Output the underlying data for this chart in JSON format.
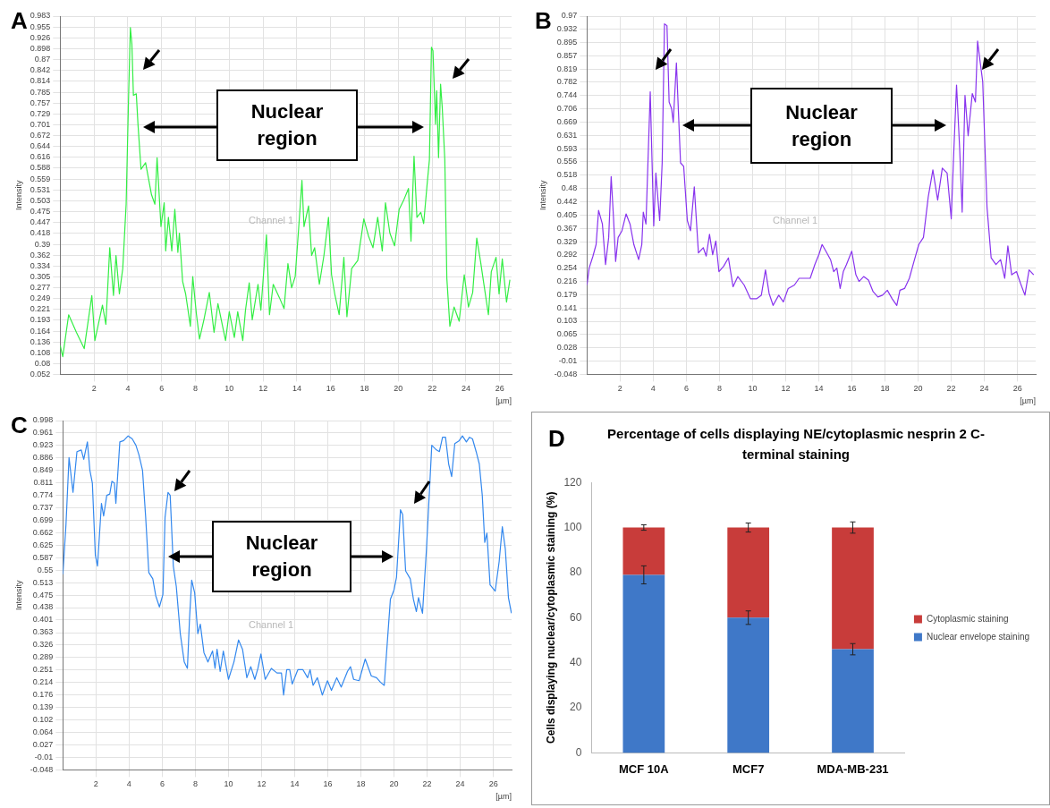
{
  "chart_data": [
    {
      "type": "line",
      "xlabel": "[µm]",
      "ylabel": "Intensity",
      "annotations": [
        "A",
        "Nuclear region",
        "Channel 1"
      ],
      "x": [
        0,
        0.15,
        0.5,
        0.96,
        1.42,
        1.87,
        2.05,
        2.5,
        2.7,
        2.93,
        3.15,
        3.3,
        3.5,
        3.7,
        3.9,
        4.05,
        4.15,
        4.24,
        4.33,
        4.5,
        4.6,
        4.78,
        5.05,
        5.4,
        5.6,
        5.73,
        5.96,
        6.15,
        6.24,
        6.4,
        6.6,
        6.78,
        6.96,
        7.05,
        7.24,
        7.42,
        7.7,
        7.84,
        8.05,
        8.24,
        8.5,
        8.82,
        9.1,
        9.33,
        9.78,
        10.0,
        10.3,
        10.5,
        10.8,
        10.96,
        11.18,
        11.36,
        11.7,
        11.87,
        12.2,
        12.38,
        12.6,
        12.96,
        13.24,
        13.47,
        13.69,
        13.9,
        14.15,
        14.3,
        14.42,
        14.69,
        14.87,
        15.05,
        15.33,
        15.6,
        15.87,
        16.05,
        16.24,
        16.5,
        16.78,
        16.96,
        17.24,
        17.6,
        17.96,
        18.24,
        18.5,
        18.78,
        19.05,
        19.24,
        19.5,
        19.78,
        20.05,
        20.33,
        20.6,
        20.75,
        20.93,
        21.1,
        21.33,
        21.5,
        21.7,
        21.84,
        21.96,
        22.05,
        22.2,
        22.27,
        22.38,
        22.5,
        22.6,
        22.75,
        22.87,
        23.05,
        23.3,
        23.6,
        23.9,
        24.15,
        24.4,
        24.64,
        24.87,
        25.05,
        25.33,
        25.5,
        25.78,
        25.96,
        26.15,
        26.4,
        26.6
      ],
      "series": [
        {
          "color": "#33ee44",
          "values": [
            0.127,
            0.098,
            0.207,
            0.161,
            0.119,
            0.257,
            0.14,
            0.232,
            0.182,
            0.381,
            0.257,
            0.361,
            0.261,
            0.327,
            0.494,
            0.785,
            0.953,
            0.91,
            0.777,
            0.781,
            0.702,
            0.585,
            0.602,
            0.519,
            0.494,
            0.615,
            0.436,
            0.498,
            0.373,
            0.46,
            0.373,
            0.481,
            0.369,
            0.419,
            0.294,
            0.261,
            0.177,
            0.306,
            0.211,
            0.144,
            0.194,
            0.265,
            0.161,
            0.236,
            0.14,
            0.215,
            0.148,
            0.215,
            0.14,
            0.219,
            0.29,
            0.194,
            0.286,
            0.219,
            0.415,
            0.207,
            0.286,
            0.252,
            0.223,
            0.34,
            0.277,
            0.306,
            0.46,
            0.556,
            0.436,
            0.49,
            0.361,
            0.381,
            0.286,
            0.361,
            0.46,
            0.311,
            0.261,
            0.207,
            0.356,
            0.202,
            0.327,
            0.348,
            0.456,
            0.411,
            0.381,
            0.46,
            0.373,
            0.498,
            0.419,
            0.386,
            0.481,
            0.506,
            0.535,
            0.398,
            0.619,
            0.46,
            0.473,
            0.444,
            0.544,
            0.61,
            0.902,
            0.893,
            0.702,
            0.789,
            0.615,
            0.806,
            0.744,
            0.61,
            0.302,
            0.177,
            0.227,
            0.19,
            0.311,
            0.227,
            0.265,
            0.406,
            0.344,
            0.29,
            0.207,
            0.319,
            0.356,
            0.261,
            0.352,
            0.24,
            0.298
          ]
        }
      ],
      "xlim": [
        0,
        26.7
      ],
      "xticks": [
        2,
        4,
        6,
        8,
        10,
        12,
        14,
        16,
        18,
        20,
        22,
        24,
        26
      ],
      "ylim": [
        0.052,
        0.983
      ],
      "yticks": [
        0.052,
        0.08,
        0.108,
        0.136,
        0.164,
        0.193,
        0.221,
        0.249,
        0.277,
        0.305,
        0.334,
        0.362,
        0.39,
        0.418,
        0.447,
        0.475,
        0.503,
        0.531,
        0.559,
        0.588,
        0.616,
        0.644,
        0.672,
        0.701,
        0.729,
        0.757,
        0.785,
        0.814,
        0.842,
        0.87,
        0.898,
        0.926,
        0.955,
        0.983
      ],
      "grid": true,
      "marker": "none"
    },
    {
      "type": "line",
      "xlabel": "[µm]",
      "ylabel": "Intensity",
      "annotations": [
        "B",
        "Nuclear region",
        "Channel 1"
      ],
      "x": [
        0,
        0.13,
        0.36,
        0.55,
        0.7,
        0.93,
        1.12,
        1.31,
        1.46,
        1.6,
        1.73,
        1.88,
        2.11,
        2.36,
        2.6,
        2.83,
        3.12,
        3.31,
        3.4,
        3.56,
        3.82,
        4.03,
        4.16,
        4.39,
        4.54,
        4.68,
        4.83,
        4.96,
        5.11,
        5.21,
        5.4,
        5.65,
        5.84,
        6.06,
        6.25,
        6.48,
        6.73,
        7.02,
        7.2,
        7.4,
        7.59,
        7.78,
        7.97,
        8.25,
        8.54,
        8.82,
        9.11,
        9.49,
        9.87,
        10.25,
        10.53,
        10.78,
        11.0,
        11.24,
        11.58,
        11.86,
        12.15,
        12.53,
        12.81,
        13.19,
        13.48,
        13.76,
        14.01,
        14.2,
        14.43,
        14.71,
        14.9,
        15.09,
        15.29,
        15.48,
        15.67,
        15.99,
        16.24,
        16.43,
        16.71,
        17.0,
        17.28,
        17.57,
        17.85,
        18.14,
        18.43,
        18.71,
        18.9,
        19.18,
        19.47,
        19.75,
        20.04,
        20.32,
        20.61,
        20.89,
        21.18,
        21.46,
        21.75,
        22.0,
        22.13,
        22.32,
        22.51,
        22.66,
        22.83,
        23.02,
        23.27,
        23.46,
        23.59,
        23.74,
        23.9,
        24.16,
        24.41,
        24.7,
        24.98,
        25.23,
        25.42,
        25.65,
        25.94,
        26.18,
        26.45,
        26.7,
        26.98
      ],
      "series": [
        {
          "color": "#8833ee",
          "values": [
            0.206,
            0.254,
            0.288,
            0.321,
            0.418,
            0.379,
            0.264,
            0.341,
            0.514,
            0.398,
            0.273,
            0.341,
            0.36,
            0.408,
            0.379,
            0.321,
            0.278,
            0.321,
            0.413,
            0.379,
            0.755,
            0.374,
            0.524,
            0.389,
            0.553,
            0.948,
            0.943,
            0.726,
            0.707,
            0.668,
            0.837,
            0.553,
            0.543,
            0.389,
            0.36,
            0.485,
            0.297,
            0.312,
            0.288,
            0.35,
            0.292,
            0.331,
            0.244,
            0.259,
            0.283,
            0.201,
            0.23,
            0.206,
            0.167,
            0.167,
            0.177,
            0.249,
            0.182,
            0.148,
            0.177,
            0.158,
            0.196,
            0.206,
            0.225,
            0.225,
            0.225,
            0.264,
            0.293,
            0.321,
            0.302,
            0.278,
            0.244,
            0.254,
            0.196,
            0.244,
            0.264,
            0.302,
            0.235,
            0.216,
            0.23,
            0.22,
            0.187,
            0.172,
            0.177,
            0.191,
            0.167,
            0.148,
            0.191,
            0.196,
            0.225,
            0.273,
            0.321,
            0.341,
            0.456,
            0.533,
            0.447,
            0.538,
            0.524,
            0.394,
            0.557,
            0.774,
            0.591,
            0.413,
            0.745,
            0.63,
            0.75,
            0.726,
            0.899,
            0.842,
            0.784,
            0.427,
            0.283,
            0.264,
            0.278,
            0.225,
            0.317,
            0.235,
            0.244,
            0.211,
            0.177,
            0.249,
            0.235
          ]
        }
      ],
      "xlim": [
        0,
        27.1
      ],
      "xticks": [
        2,
        4,
        6,
        8,
        10,
        12,
        14,
        16,
        18,
        20,
        22,
        24,
        26
      ],
      "ylim": [
        -0.048,
        0.97
      ],
      "yticks": [
        -0.048,
        -0.01,
        0.028,
        0.065,
        0.103,
        0.141,
        0.179,
        0.216,
        0.254,
        0.292,
        0.329,
        0.367,
        0.405,
        0.442,
        0.48,
        0.518,
        0.556,
        0.593,
        0.631,
        0.669,
        0.706,
        0.744,
        0.782,
        0.819,
        0.857,
        0.895,
        0.932,
        0.97
      ],
      "grid": true,
      "marker": "none"
    },
    {
      "type": "line",
      "xlabel": "[µm]",
      "ylabel": "Intensity",
      "annotations": [
        "C",
        "Nuclear region",
        "Channel 1"
      ],
      "x": [
        0,
        0.19,
        0.37,
        0.61,
        0.85,
        1.11,
        1.26,
        1.48,
        1.63,
        1.78,
        1.96,
        2.09,
        2.33,
        2.46,
        2.65,
        2.83,
        2.96,
        3.11,
        3.2,
        3.44,
        3.67,
        3.94,
        4.19,
        4.41,
        4.59,
        4.81,
        5.0,
        5.19,
        5.43,
        5.61,
        5.83,
        6.04,
        6.17,
        6.35,
        6.48,
        6.67,
        6.85,
        7.09,
        7.33,
        7.52,
        7.65,
        7.78,
        7.96,
        8.15,
        8.3,
        8.52,
        8.76,
        9.04,
        9.19,
        9.31,
        9.5,
        9.69,
        10.0,
        10.33,
        10.61,
        10.85,
        11.11,
        11.35,
        11.59,
        11.78,
        11.96,
        12.22,
        12.59,
        12.93,
        13.2,
        13.33,
        13.52,
        13.7,
        13.85,
        14.19,
        14.5,
        14.78,
        14.93,
        15.11,
        15.37,
        15.67,
        15.98,
        16.22,
        16.54,
        16.81,
        17.19,
        17.37,
        17.56,
        17.89,
        18.26,
        18.63,
        18.94,
        19.19,
        19.41,
        19.59,
        19.78,
        20.0,
        20.15,
        20.39,
        20.52,
        20.7,
        20.98,
        21.17,
        21.35,
        21.48,
        21.72,
        21.96,
        22.28,
        22.56,
        22.74,
        22.93,
        23.11,
        23.3,
        23.48,
        23.67,
        23.94,
        24.13,
        24.37,
        24.56,
        24.74,
        24.96,
        25.15,
        25.33,
        25.48,
        25.61,
        25.8,
        26.11,
        26.35,
        26.54,
        26.72,
        26.91,
        27.09
      ],
      "series": [
        {
          "color": "#3388ee",
          "values": [
            0.538,
            0.689,
            0.887,
            0.783,
            0.905,
            0.91,
            0.882,
            0.934,
            0.849,
            0.811,
            0.595,
            0.562,
            0.75,
            0.712,
            0.774,
            0.778,
            0.816,
            0.811,
            0.75,
            0.934,
            0.938,
            0.952,
            0.943,
            0.924,
            0.896,
            0.849,
            0.708,
            0.543,
            0.524,
            0.473,
            0.44,
            0.477,
            0.708,
            0.783,
            0.774,
            0.562,
            0.501,
            0.36,
            0.275,
            0.256,
            0.407,
            0.52,
            0.482,
            0.36,
            0.388,
            0.303,
            0.275,
            0.308,
            0.256,
            0.313,
            0.247,
            0.308,
            0.223,
            0.275,
            0.341,
            0.313,
            0.228,
            0.261,
            0.223,
            0.256,
            0.299,
            0.223,
            0.256,
            0.242,
            0.242,
            0.176,
            0.252,
            0.252,
            0.209,
            0.252,
            0.252,
            0.228,
            0.252,
            0.205,
            0.228,
            0.176,
            0.219,
            0.19,
            0.228,
            0.2,
            0.247,
            0.261,
            0.223,
            0.219,
            0.284,
            0.233,
            0.228,
            0.214,
            0.205,
            0.331,
            0.463,
            0.491,
            0.529,
            0.731,
            0.717,
            0.548,
            0.524,
            0.463,
            0.426,
            0.468,
            0.421,
            0.614,
            0.924,
            0.91,
            0.905,
            0.948,
            0.948,
            0.868,
            0.83,
            0.929,
            0.938,
            0.952,
            0.934,
            0.948,
            0.943,
            0.905,
            0.868,
            0.774,
            0.633,
            0.661,
            0.506,
            0.487,
            0.576,
            0.68,
            0.614,
            0.468,
            0.421
          ]
        }
      ],
      "xlim": [
        0,
        27.1
      ],
      "xticks": [
        2,
        4,
        6,
        8,
        10,
        12,
        14,
        16,
        18,
        20,
        22,
        24,
        26
      ],
      "ylim": [
        -0.048,
        0.998
      ],
      "yticks": [
        -0.048,
        -0.01,
        0.027,
        0.064,
        0.102,
        0.139,
        0.176,
        0.214,
        0.251,
        0.289,
        0.326,
        0.363,
        0.401,
        0.438,
        0.475,
        0.513,
        0.55,
        0.587,
        0.625,
        0.662,
        0.699,
        0.737,
        0.774,
        0.811,
        0.849,
        0.886,
        0.923,
        0.961,
        0.998
      ],
      "grid": true,
      "marker": "none"
    },
    {
      "type": "bar",
      "title": "Percentage of cells displaying NE/cytoplasmic nesprin 2 C-terminal staining",
      "ylabel": "Cells displaying nuclear/cytoplasmic staining (%)",
      "annotations": [
        "D"
      ],
      "categories": [
        "MCF 10A",
        "MCF7",
        "MDA-MB-231"
      ],
      "series": [
        {
          "name": "Nuclear envelope staining",
          "color": "#3f78c8",
          "values": [
            79,
            60,
            46
          ],
          "errors": [
            4,
            3,
            2.5
          ]
        },
        {
          "name": "Cytoplasmic staining",
          "color": "#c83c3a",
          "values": [
            21,
            40,
            54
          ],
          "errors": [
            1.2,
            2,
            2.5
          ]
        }
      ],
      "stacked": true,
      "ylim": [
        0,
        120
      ],
      "yticks": [
        0,
        20,
        40,
        60,
        80,
        100,
        120
      ],
      "legend": "right"
    }
  ]
}
